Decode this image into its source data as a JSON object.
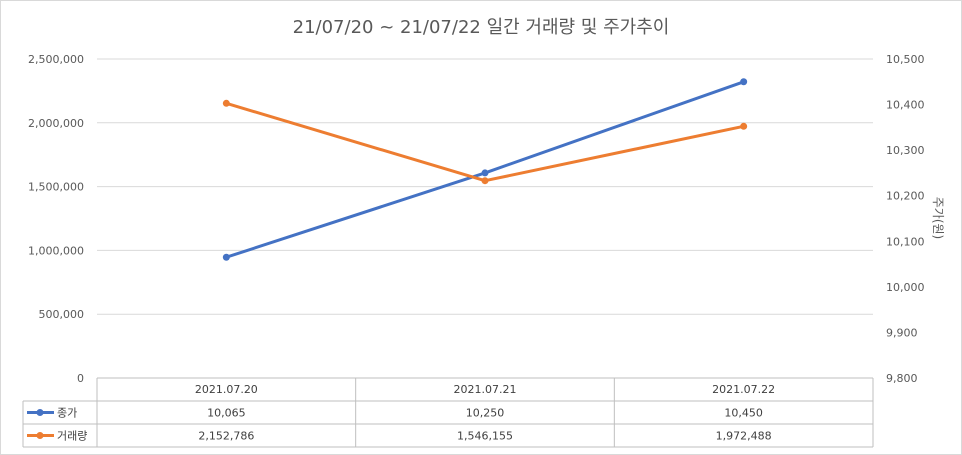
{
  "chart_data": {
    "type": "line",
    "title": "21/07/20 ~ 21/07/22 일간 거래량 및 주가추이",
    "categories": [
      "2021.07.20",
      "2021.07.21",
      "2021.07.22"
    ],
    "series": [
      {
        "name": "종가",
        "axis": "right",
        "color": "#4472c4",
        "values": [
          10065,
          10250,
          10450
        ],
        "labels": [
          "10,065",
          "10,250",
          "10,450"
        ]
      },
      {
        "name": "거래량",
        "axis": "left",
        "color": "#ed7d31",
        "values": [
          2152786,
          1546155,
          1972488
        ],
        "labels": [
          "2,152,786",
          "1,546,155",
          "1,972,488"
        ]
      }
    ],
    "y_left": {
      "min": 0,
      "max": 2500000,
      "step": 500000,
      "ticks": [
        "0",
        "500,000",
        "1,000,000",
        "1,500,000",
        "2,000,000",
        "2,500,000"
      ]
    },
    "y_right": {
      "label": "주가(원)",
      "min": 9800,
      "max": 10500,
      "step": 100,
      "ticks": [
        "9,800",
        "9,900",
        "10,000",
        "10,100",
        "10,200",
        "10,300",
        "10,400",
        "10,500"
      ]
    },
    "grid": true,
    "legend": "data-table"
  }
}
